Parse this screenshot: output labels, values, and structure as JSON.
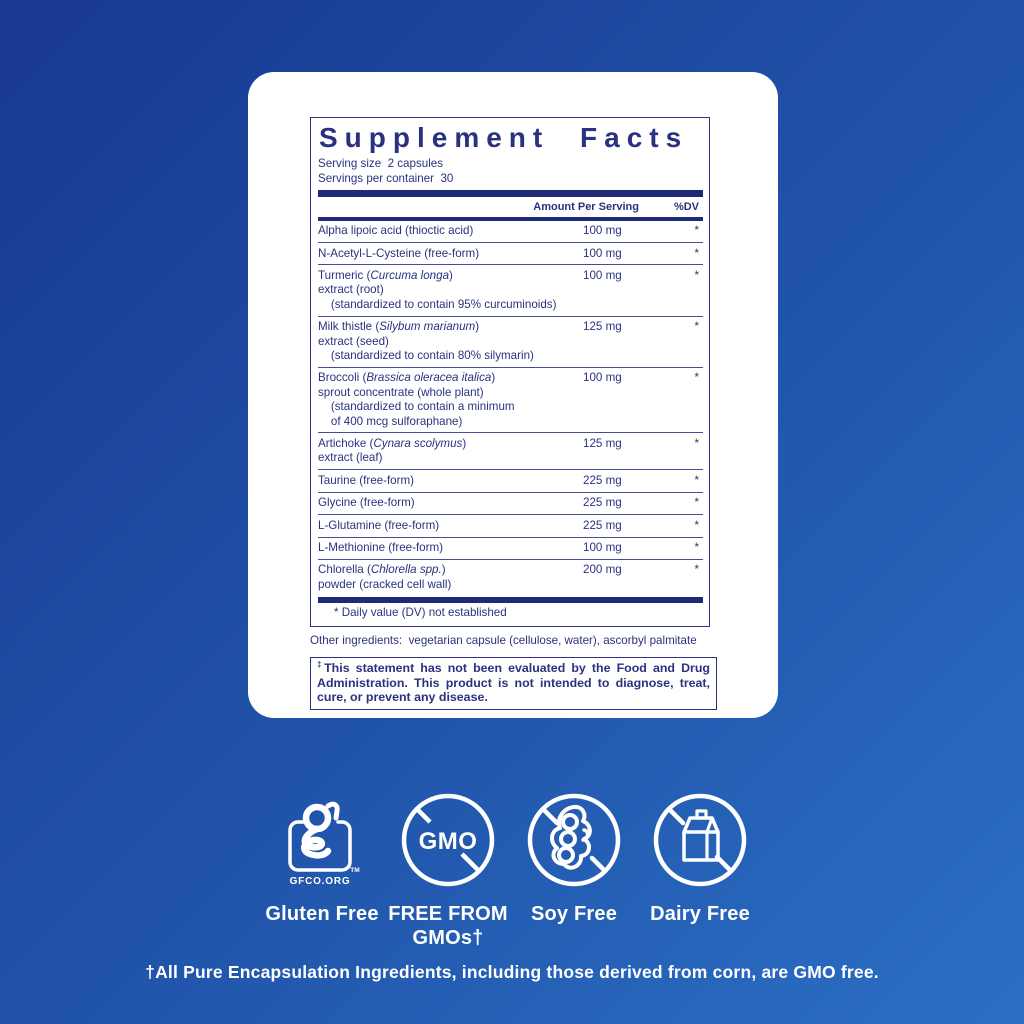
{
  "colors": {
    "background_top_left": "#19388f",
    "background_bottom_right": "#2b70c5",
    "panel_text_navy": "#2a327f",
    "bar_navy": "#1f2b78",
    "card_white": "#ffffff"
  },
  "panel": {
    "title": "Supplement Facts",
    "serving_size_line": "Serving size  2 capsules",
    "servings_per_container_line": "Servings per container  30",
    "header": {
      "amount": "Amount Per Serving",
      "dv": "%DV"
    },
    "rows": [
      {
        "lines": [
          "Alpha lipoic acid (thioctic acid)"
        ],
        "amount": "100 mg",
        "dv": "*"
      },
      {
        "lines": [
          "N-Acetyl-L-Cysteine (free-form)"
        ],
        "amount": "100 mg",
        "dv": "*"
      },
      {
        "lines": [
          "Turmeric (_Curcuma longa_)",
          "extract (root)",
          "    (standardized to contain 95% curcuminoids)"
        ],
        "amount": "100 mg",
        "dv": "*"
      },
      {
        "lines": [
          "Milk thistle (_Silybum marianum_)",
          "extract (seed)",
          "    (standardized to contain 80% silymarin)"
        ],
        "amount": "125 mg",
        "dv": "*"
      },
      {
        "lines": [
          "Broccoli (_Brassica oleracea italica_)",
          "sprout concentrate (whole plant)",
          "    (standardized to contain a minimum",
          "    of 400 mcg sulforaphane)"
        ],
        "amount": "100 mg",
        "dv": "*"
      },
      {
        "lines": [
          "Artichoke (_Cynara scolymus_)",
          "extract (leaf)"
        ],
        "amount": "125 mg",
        "dv": "*"
      },
      {
        "lines": [
          "Taurine (free-form)"
        ],
        "amount": "225 mg",
        "dv": "*"
      },
      {
        "lines": [
          "Glycine (free-form)"
        ],
        "amount": "225 mg",
        "dv": "*"
      },
      {
        "lines": [
          "L-Glutamine (free-form)"
        ],
        "amount": "225 mg",
        "dv": "*"
      },
      {
        "lines": [
          "L-Methionine (free-form)"
        ],
        "amount": "100 mg",
        "dv": "*"
      },
      {
        "lines": [
          "Chlorella (_Chlorella spp._)",
          "powder (cracked cell wall)"
        ],
        "amount": "200 mg",
        "dv": "*"
      }
    ],
    "dv_footnote": "* Daily value (DV) not established",
    "other_ingredients": "Other ingredients:  vegetarian capsule (cellulose, water), ascorbyl palmitate",
    "disclaimer_mark": "‡",
    "disclaimer_text": "This statement has not been evaluated by the Food and Drug Administration. This product is not intended to diagnose, treat, cure, or prevent any disease."
  },
  "badges": {
    "gluten": {
      "label": "Gluten Free",
      "cert_text": "GFCO.ORG",
      "tm": "TM"
    },
    "gmo": {
      "icon_text": "GMO",
      "label_line1": "FREE FROM",
      "label_line2": "GMOs†"
    },
    "soy": {
      "label": "Soy Free"
    },
    "dairy": {
      "label": "Dairy Free"
    }
  },
  "footer_note": "†All Pure Encapsulation Ingredients, including those derived from corn, are GMO free."
}
